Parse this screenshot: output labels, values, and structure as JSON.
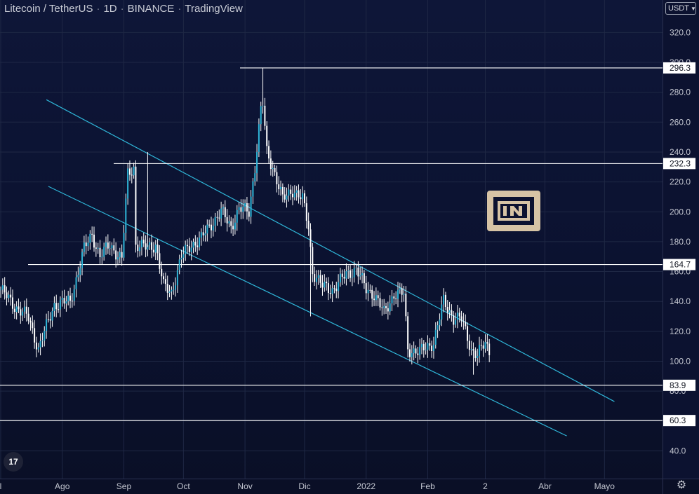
{
  "header": {
    "symbol": "Litecoin / TetherUS",
    "interval": "1D",
    "exchange": "BINANCE",
    "source": "TradingView",
    "currency": "USDT"
  },
  "watermark": {
    "icon": "beincrypto-logo",
    "color": "#d6c3a5"
  },
  "colors": {
    "candle": "#ffffff",
    "channel": "#2fb6d8",
    "level": "#ffffff",
    "grid": "#1f2845"
  },
  "icons": {
    "tv_logo": "tradingview-logo",
    "settings": "gear-icon"
  },
  "chart_data": {
    "type": "candlestick",
    "y_axis": {
      "min": 40,
      "max": 320,
      "ticks": [
        320,
        300,
        280,
        260,
        240,
        220,
        200,
        180,
        160,
        140,
        120,
        100,
        80,
        60,
        40
      ]
    },
    "x_axis": {
      "ticks": [
        {
          "label": "l",
          "date": "2021-07-01"
        },
        {
          "label": "Ago",
          "date": "2021-08-01"
        },
        {
          "label": "Sep",
          "date": "2021-09-01"
        },
        {
          "label": "Oct",
          "date": "2021-10-01"
        },
        {
          "label": "Nov",
          "date": "2021-11-01"
        },
        {
          "label": "Dic",
          "date": "2021-12-01"
        },
        {
          "label": "2022",
          "date": "2022-01-01"
        },
        {
          "label": "Feb",
          "date": "2022-02-01"
        },
        {
          "label": "2",
          "date": "2022-03-02"
        },
        {
          "label": "Abr",
          "date": "2022-04-01"
        },
        {
          "label": "Mayo",
          "date": "2022-05-01"
        }
      ]
    },
    "levels": [
      296.3,
      232.3,
      164.7,
      83.9,
      60.3
    ],
    "channel": [
      {
        "start": [
          "2021-07-24",
          275
        ],
        "end": [
          "2022-05-06",
          73
        ]
      },
      {
        "start": [
          "2021-07-25",
          217
        ],
        "end": [
          "2022-04-12",
          50
        ]
      }
    ],
    "price_path": [
      [
        "2021-07-01",
        148
      ],
      [
        "2021-07-08",
        137
      ],
      [
        "2021-07-15",
        129
      ],
      [
        "2021-07-20",
        108
      ],
      [
        "2021-07-28",
        138
      ],
      [
        "2021-08-05",
        140
      ],
      [
        "2021-08-12",
        175
      ],
      [
        "2021-08-16",
        185
      ],
      [
        "2021-08-20",
        170
      ],
      [
        "2021-08-25",
        178
      ],
      [
        "2021-08-31",
        168
      ],
      [
        "2021-09-03",
        225
      ],
      [
        "2021-09-06",
        230
      ],
      [
        "2021-09-07",
        178
      ],
      [
        "2021-09-12",
        176
      ],
      [
        "2021-09-17",
        178
      ],
      [
        "2021-09-21",
        150
      ],
      [
        "2021-09-25",
        146
      ],
      [
        "2021-09-30",
        170
      ],
      [
        "2021-10-05",
        178
      ],
      [
        "2021-10-10",
        182
      ],
      [
        "2021-10-15",
        192
      ],
      [
        "2021-10-20",
        200
      ],
      [
        "2021-10-25",
        190
      ],
      [
        "2021-10-29",
        202
      ],
      [
        "2021-11-03",
        200
      ],
      [
        "2021-11-06",
        230
      ],
      [
        "2021-11-09",
        268
      ],
      [
        "2021-11-10",
        272
      ],
      [
        "2021-11-12",
        240
      ],
      [
        "2021-11-15",
        230
      ],
      [
        "2021-11-20",
        208
      ],
      [
        "2021-11-25",
        215
      ],
      [
        "2021-11-30",
        208
      ],
      [
        "2021-12-03",
        190
      ],
      [
        "2021-12-05",
        160
      ],
      [
        "2021-12-10",
        150
      ],
      [
        "2021-12-15",
        148
      ],
      [
        "2021-12-22",
        158
      ],
      [
        "2021-12-27",
        162
      ],
      [
        "2022-01-01",
        148
      ],
      [
        "2022-01-05",
        145
      ],
      [
        "2022-01-10",
        132
      ],
      [
        "2022-01-15",
        145
      ],
      [
        "2022-01-20",
        145
      ],
      [
        "2022-01-22",
        108
      ],
      [
        "2022-01-28",
        106
      ],
      [
        "2022-02-04",
        113
      ],
      [
        "2022-02-09",
        140
      ],
      [
        "2022-02-14",
        129
      ],
      [
        "2022-02-18",
        128
      ],
      [
        "2022-02-23",
        108
      ],
      [
        "2022-02-26",
        104
      ],
      [
        "2022-03-02",
        112
      ],
      [
        "2022-03-04",
        107
      ]
    ],
    "high_spikes": [
      [
        "2021-09-13",
        240
      ],
      [
        "2021-11-10",
        296.3
      ]
    ],
    "low_spikes": [
      [
        "2021-12-04",
        130
      ],
      [
        "2022-02-24",
        91
      ]
    ]
  }
}
